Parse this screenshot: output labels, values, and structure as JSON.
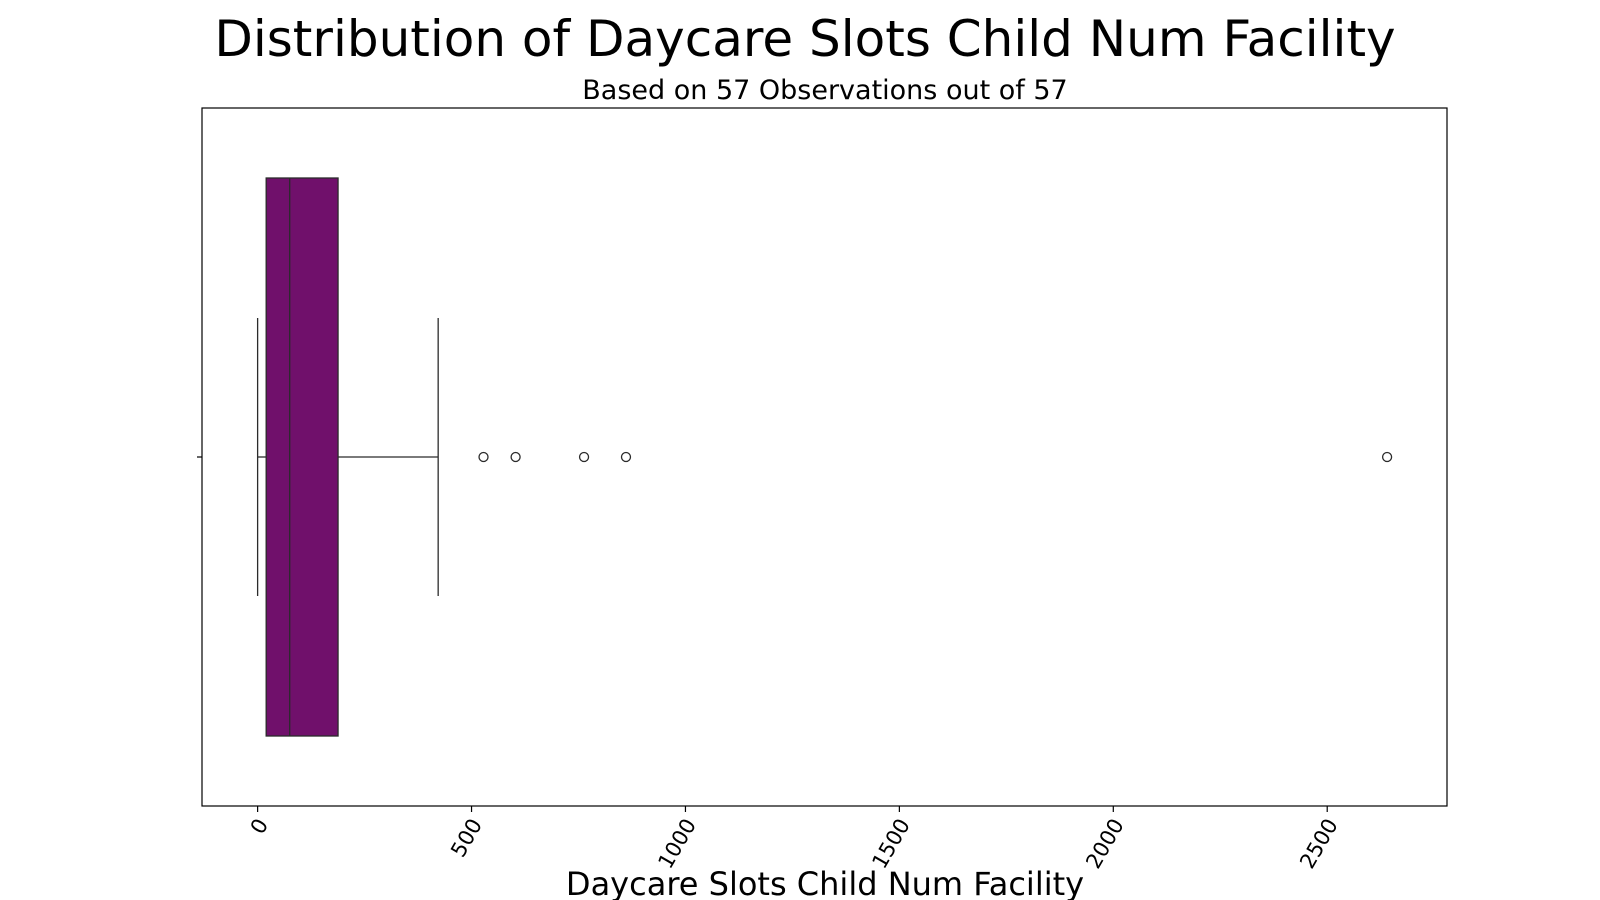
{
  "chart_data": {
    "type": "box",
    "orientation": "horizontal",
    "title": "Distribution of Daycare Slots Child Num Facility",
    "subtitle": "Based on 57 Observations out of 57",
    "xlabel": "Daycare Slots Child Num Facility",
    "ylabel": "",
    "xlim": [
      -130,
      2780
    ],
    "x_ticks": [
      0,
      500,
      1000,
      1500,
      2000,
      2500
    ],
    "x_tick_labels": [
      "0",
      "500",
      "1000",
      "1500",
      "2000",
      "2500"
    ],
    "tick_rotation_deg": 60,
    "grid": false,
    "legend": "none",
    "box": {
      "whisker_low": 0,
      "q1": 20,
      "median": 75,
      "q3": 188,
      "whisker_high": 422
    },
    "outliers": [
      528,
      603,
      763,
      861,
      2640
    ],
    "colors": {
      "box_fill": "#70106b",
      "line": "#2b2b2b",
      "outlier_edge": "#2b2b2b"
    }
  }
}
